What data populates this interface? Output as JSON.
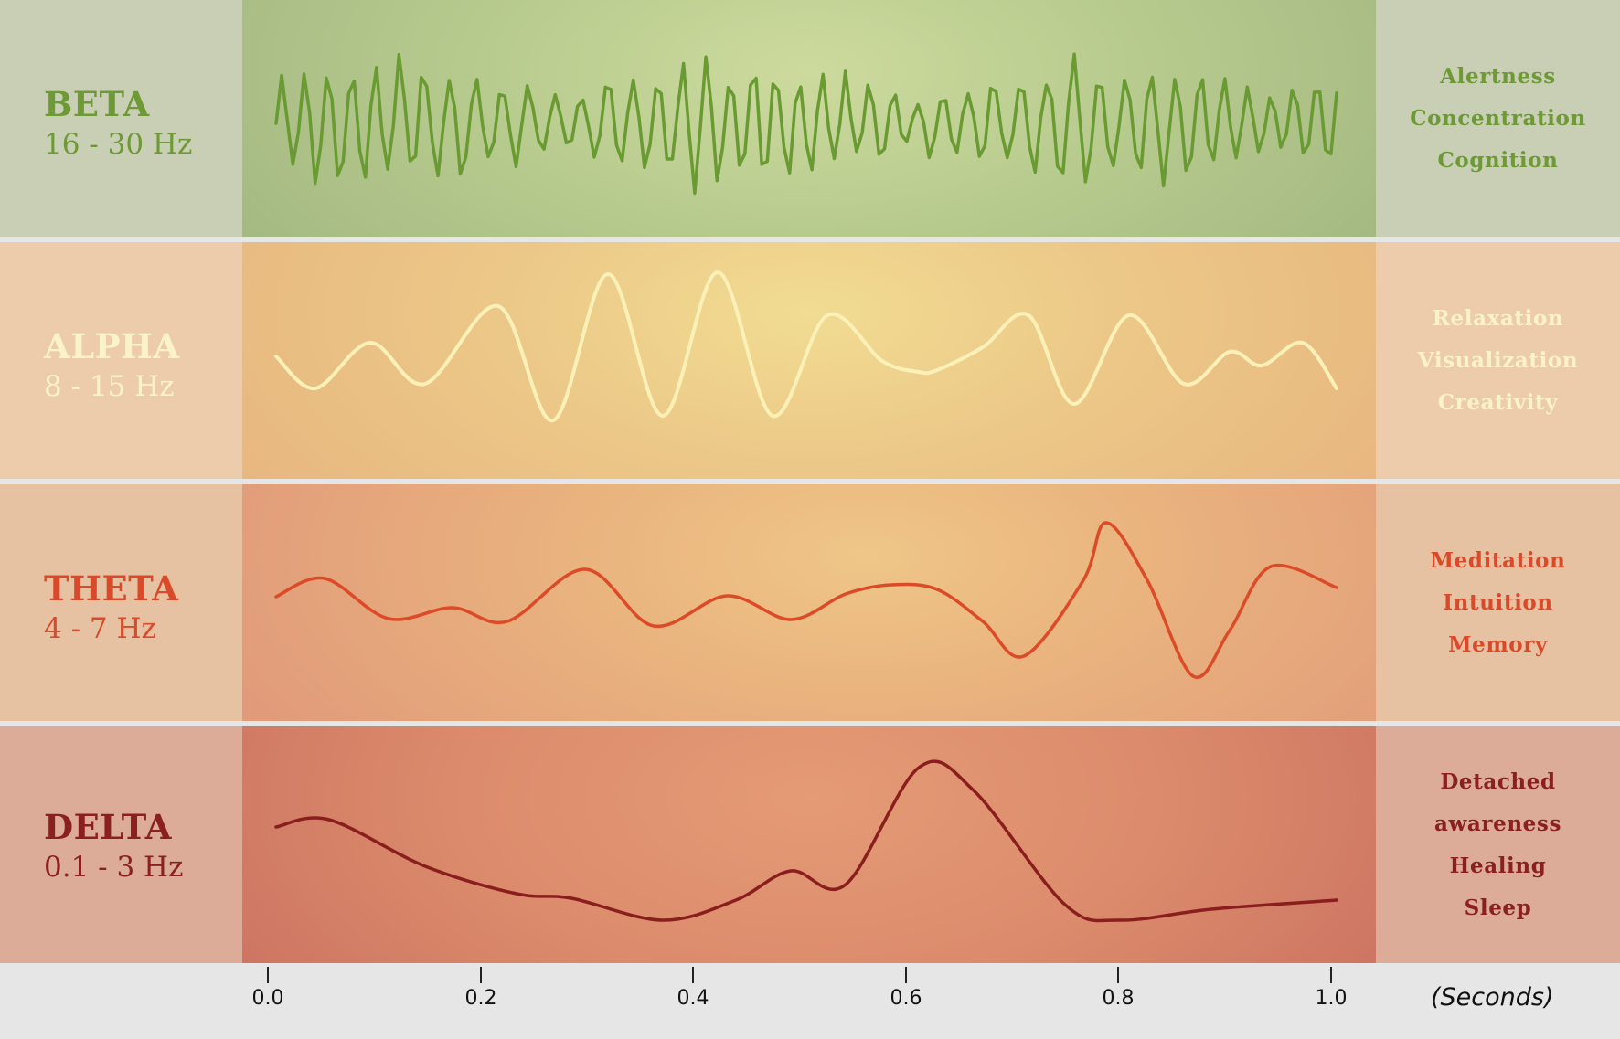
{
  "bands": {
    "beta": {
      "name": "BETA",
      "freq": "16 - 30 Hz",
      "traits": [
        "Alertness",
        "Concentration",
        "Cognition"
      ],
      "color": "#6d9a34"
    },
    "alpha": {
      "name": "ALPHA",
      "freq": "8 - 15 Hz",
      "traits": [
        "Relaxation",
        "Visualization",
        "Creativity"
      ],
      "color": "#fbf3c8"
    },
    "theta": {
      "name": "THETA",
      "freq": "4 - 7 Hz",
      "traits": [
        "Meditation",
        "Intuition",
        "Memory"
      ],
      "color": "#d94a2a"
    },
    "delta": {
      "name": "DELTA",
      "freq": "0.1 - 3 Hz",
      "traits": [
        "Detached",
        "awareness",
        "Healing",
        "Sleep"
      ],
      "color": "#8b2020"
    }
  },
  "axis": {
    "ticks": [
      "0.0",
      "0.2",
      "0.4",
      "0.6",
      "0.8",
      "1.0"
    ],
    "unit": "(Seconds)"
  }
}
